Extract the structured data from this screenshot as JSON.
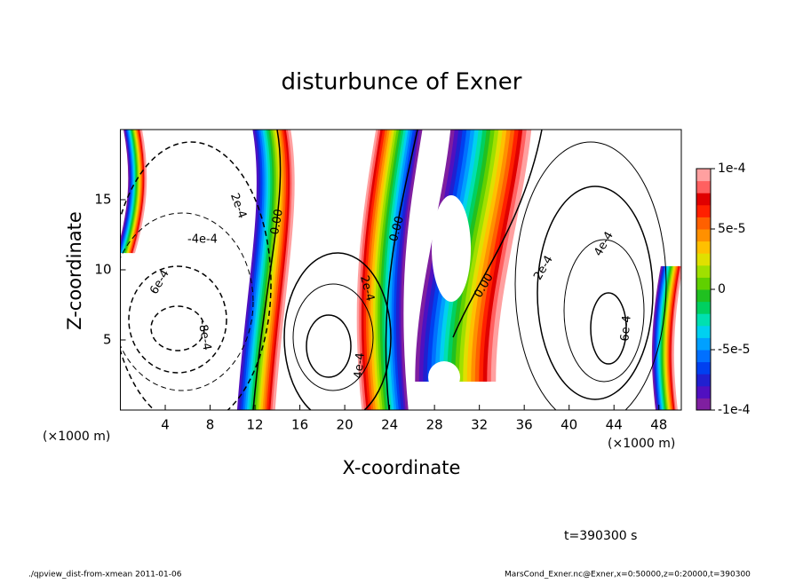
{
  "chart_data": {
    "type": "contour",
    "title": "disturbunce of Exner",
    "x_label": "X-coordinate",
    "y_label": "Z-coordinate",
    "x_unit": "(×1000 m)",
    "y_unit": "(×1000 m)",
    "xlim": [
      0,
      50
    ],
    "ylim": [
      0,
      20
    ],
    "xticks": [
      4,
      8,
      12,
      16,
      20,
      24,
      28,
      32,
      36,
      40,
      44,
      48
    ],
    "yticks": [
      5,
      10,
      15
    ],
    "colorbar": {
      "clim": [
        -0.0001,
        0.0001
      ],
      "ticks": [
        {
          "value": 0.0001,
          "label": "1e-4"
        },
        {
          "value": 5e-05,
          "label": "5e-5"
        },
        0,
        {
          "value": -5e-05,
          "label": "-5e-5"
        },
        {
          "value": -0.0001,
          "label": "-1e-4"
        }
      ],
      "colors": [
        "#7f1fa0",
        "#5010c0",
        "#2020d0",
        "#0040f0",
        "#0070ff",
        "#00a0ff",
        "#00d0f0",
        "#00e0b0",
        "#00d060",
        "#20c020",
        "#60d000",
        "#a0e000",
        "#e0e000",
        "#ffc000",
        "#ff9000",
        "#ff6000",
        "#ff2000",
        "#e00000",
        "#ff6060",
        "#ffa0a0"
      ]
    },
    "contour_labels": [
      "2e-4",
      "-4e-4",
      "6e-4",
      "-8e-4",
      "0.00",
      "2e-4",
      "4e-4",
      "0.00",
      "0.00",
      "2e-4",
      "4e-4",
      "6e-4"
    ],
    "time_label": "t=390300 s",
    "footer_left": "./qpview_dist-from-xmean  2011-01-06",
    "footer_right": "MarsCond_Exner.nc@Exner,x=0:50000,z=0:20000,t=390300"
  }
}
